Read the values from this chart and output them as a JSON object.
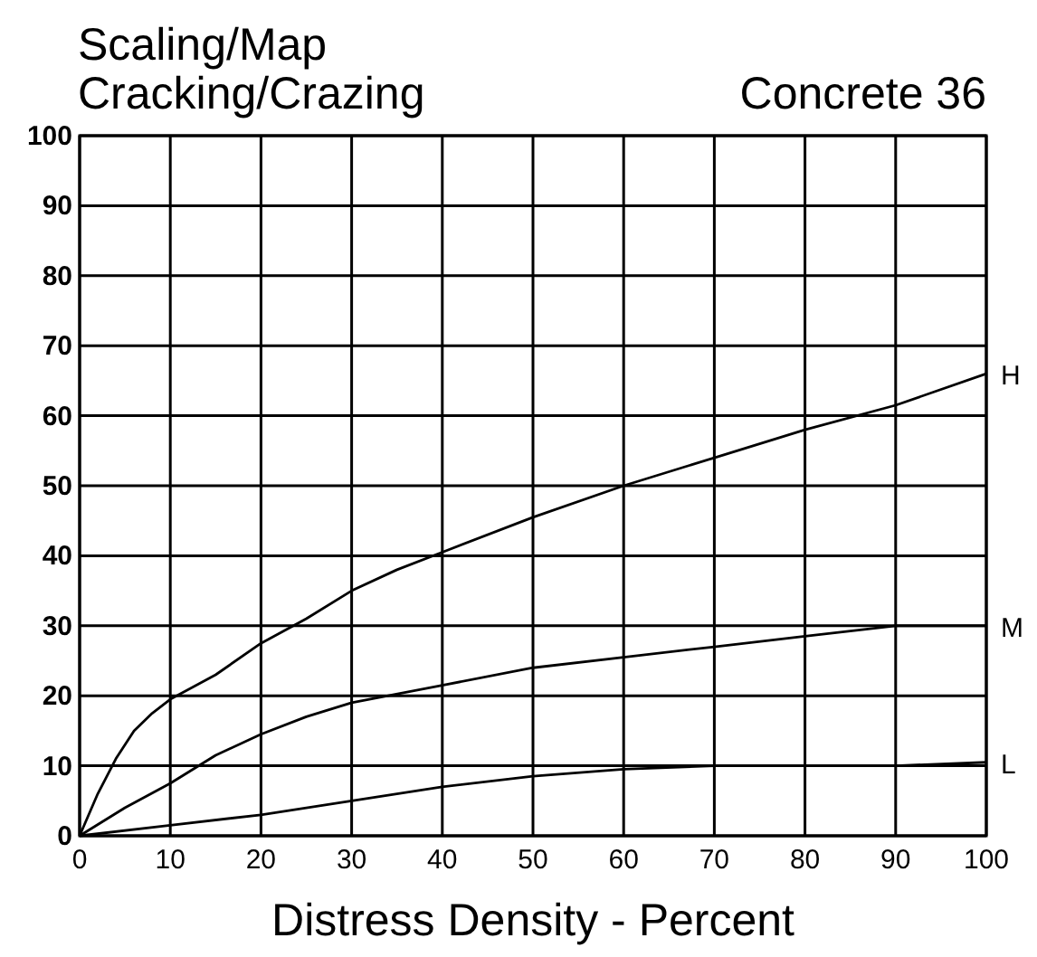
{
  "chart_data": {
    "type": "line",
    "title": "Scaling/Map\nCracking/Crazing",
    "subtitle": "Concrete 36",
    "xlabel": "Distress Density - Percent",
    "x": [
      0,
      2,
      4,
      6,
      8,
      10,
      15,
      20,
      25,
      30,
      35,
      40,
      50,
      60,
      70,
      80,
      90,
      100
    ],
    "series": [
      {
        "name": "H",
        "color": "#000000",
        "values": [
          0,
          6,
          11,
          15,
          17.5,
          19.5,
          23,
          27.5,
          31,
          35,
          38,
          40.5,
          45.5,
          50,
          54,
          58,
          61.5,
          66
        ]
      },
      {
        "name": "M",
        "color": "#000000",
        "x": [
          0,
          5,
          10,
          15,
          20,
          25,
          30,
          40,
          50,
          60,
          70,
          80,
          90,
          100
        ],
        "values": [
          0,
          4,
          7.5,
          11.5,
          14.5,
          17,
          19,
          21.5,
          24,
          25.5,
          27,
          28.5,
          30,
          30
        ]
      },
      {
        "name": "L",
        "color": "#000000",
        "x": [
          0,
          10,
          20,
          30,
          40,
          50,
          60,
          70,
          80,
          90,
          100
        ],
        "values": [
          0,
          1.5,
          3,
          5,
          7,
          8.5,
          9.5,
          10,
          10,
          10,
          10.5
        ]
      }
    ],
    "xlim": [
      0,
      100
    ],
    "ylim": [
      0,
      100
    ],
    "xticks": [
      0,
      10,
      20,
      30,
      40,
      50,
      60,
      70,
      80,
      90,
      100
    ],
    "yticks": [
      0,
      10,
      20,
      30,
      40,
      50,
      60,
      70,
      80,
      90,
      100
    ],
    "grid": true,
    "marker": "none",
    "line_style": "solid"
  }
}
